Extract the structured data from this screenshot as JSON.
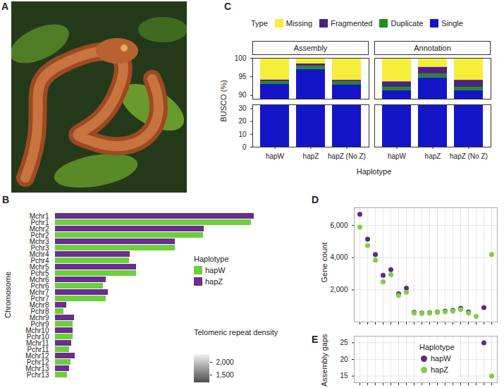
{
  "chart_data": [
    {
      "type": "image",
      "panel": "A"
    },
    {
      "type": "bar",
      "panel": "B",
      "orientation": "horizontal",
      "y_label": "Chromosome",
      "categories": [
        "Mchr1",
        "Pchr1",
        "Mchr2",
        "Pchr2",
        "Mchr3",
        "Pchr3",
        "Mchr4",
        "Pchr4",
        "Mchr5",
        "Pchr5",
        "Mchr6",
        "Pchr6",
        "Mchr7",
        "Pchr7",
        "Mchr8",
        "Pchr8",
        "Mchr9",
        "Pchr9",
        "Mchr10",
        "Pchr10",
        "Mchr11",
        "Pchr11",
        "Mchr12",
        "Pchr12",
        "Mchr13",
        "Pchr13"
      ],
      "series": [
        {
          "name": "hapW",
          "color": "#6ccf3d",
          "values": [
            null,
            278,
            null,
            210,
            null,
            170,
            null,
            105,
            null,
            115,
            null,
            68,
            null,
            72,
            null,
            12,
            null,
            25,
            null,
            25,
            null,
            20,
            null,
            22,
            null,
            17
          ]
        },
        {
          "name": "hapZ",
          "color": "#6b2d8f",
          "values": [
            282,
            null,
            211,
            null,
            170,
            null,
            106,
            null,
            115,
            null,
            72,
            null,
            75,
            null,
            16,
            null,
            27,
            null,
            25,
            null,
            23,
            null,
            28,
            null,
            20,
            null
          ]
        }
      ],
      "xlim": [
        0,
        290
      ],
      "tick_labels": "y",
      "legend_title": "Haplotype",
      "legend": "right",
      "telomeric_repeat_density": {
        "title": "Telomeric repeat density",
        "range": [
          1200,
          2300
        ],
        "ticks": [
          1500,
          2000
        ]
      }
    },
    {
      "type": "bar",
      "panel": "C",
      "stacked": true,
      "legend_title": "Type",
      "legend": "top",
      "x_label": "Haplotype",
      "y_label": "BUSCO (%)",
      "facets": [
        "Assembly",
        "Annotation"
      ],
      "categories": [
        "hapW",
        "hapZ",
        "hapZ (No Z)"
      ],
      "series": [
        {
          "name": "Missing",
          "color": "#f5ee3a",
          "values": [
            [
              5.8,
              1.5,
              5.9
            ],
            [
              6.3,
              2.4,
              5.9
            ]
          ]
        },
        {
          "name": "Fragmented",
          "color": "#4b2380",
          "values": [
            [
              0.5,
              0.7,
              0.5
            ],
            [
              1.5,
              1.9,
              1.9
            ]
          ]
        },
        {
          "name": "Duplicate",
          "color": "#1e8c1e",
          "values": [
            [
              0.7,
              0.8,
              0.8
            ],
            [
              0.9,
              0.9,
              0.9
            ]
          ]
        },
        {
          "name": "Single",
          "color": "#1515c8",
          "values": [
            [
              93.0,
              97.0,
              92.8
            ],
            [
              91.3,
              94.8,
              91.3
            ]
          ]
        }
      ],
      "ylim": [
        [
          0,
          33
        ],
        [
          89,
          100
        ]
      ],
      "yticks": [
        [
          0,
          10,
          20,
          30
        ],
        [
          90,
          95,
          100
        ]
      ]
    },
    {
      "type": "scatter",
      "panel": "D",
      "y_label": "Gene count",
      "categories": [
        null,
        null,
        null,
        null,
        null,
        null,
        null,
        null,
        null,
        null,
        null,
        null,
        null,
        null,
        null,
        null,
        null,
        null
      ],
      "series": [
        {
          "name": "hapW",
          "color": "#5d2a84",
          "values": [
            6700,
            5150,
            4200,
            2900,
            3250,
            1750,
            2100,
            600,
            560,
            580,
            620,
            680,
            720,
            850,
            620,
            null,
            900,
            null
          ]
        },
        {
          "name": "hapZ",
          "color": "#7fcf3f",
          "values": [
            5900,
            4750,
            3850,
            2500,
            2950,
            1650,
            1850,
            560,
            540,
            560,
            600,
            640,
            680,
            780,
            560,
            350,
            null,
            4200
          ]
        }
      ],
      "ylim": [
        0,
        7100
      ],
      "yticks": [
        2000,
        4000,
        6000
      ],
      "grid": true,
      "tick_labels": "y"
    },
    {
      "type": "scatter",
      "panel": "E",
      "y_label": "Assembly gaps",
      "legend_title": "Haplotype",
      "legend": "right",
      "categories": [
        null,
        null,
        null,
        null,
        null,
        null,
        null,
        null,
        null,
        null,
        null,
        null,
        null,
        null,
        null,
        null,
        null,
        null
      ],
      "series": [
        {
          "name": "hapW",
          "color": "#5d2a84",
          "values": [
            null,
            null,
            null,
            null,
            null,
            null,
            null,
            null,
            null,
            null,
            null,
            null,
            null,
            null,
            null,
            null,
            25,
            null
          ]
        },
        {
          "name": "hapZ",
          "color": "#7fcf3f",
          "values": [
            null,
            null,
            null,
            null,
            null,
            null,
            null,
            null,
            null,
            null,
            null,
            null,
            null,
            null,
            null,
            null,
            null,
            15
          ]
        }
      ],
      "ylim": [
        13,
        27
      ],
      "yticks": [
        15,
        20,
        25
      ],
      "grid": true,
      "tick_labels": "y"
    }
  ]
}
